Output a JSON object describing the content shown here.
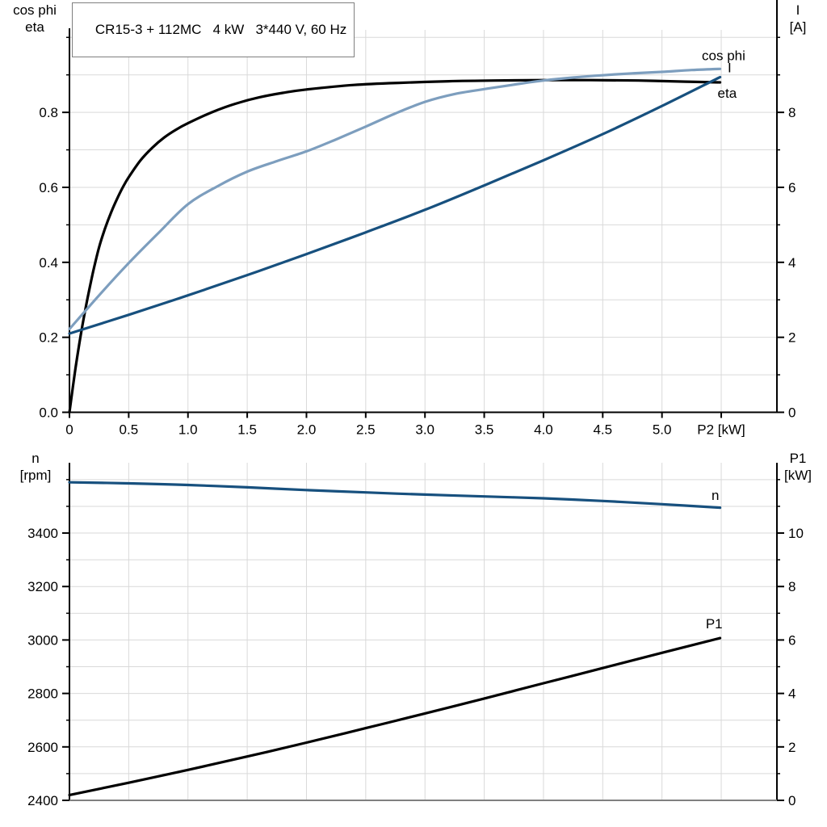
{
  "title": "CR15-3 + 112MC   4 kW   3*440 V, 60 Hz",
  "colors": {
    "black": "#000000",
    "dark_blue": "#17507E",
    "light_blue": "#7D9EBE",
    "grid": "#D9D9D9",
    "axis": "#000000",
    "frame_gray": "#808080",
    "background": "#FFFFFF"
  },
  "chart_data": [
    {
      "type": "line",
      "name": "motor-performance-curves",
      "title": "CR15-3 + 112MC   4 kW   3*440 V, 60 Hz",
      "x_axis": {
        "label": "P2 [kW]",
        "range": [
          0,
          5.97
        ],
        "grid_step": 0.5,
        "ticks": [
          {
            "v": 0,
            "t": "0"
          },
          {
            "v": 0.5,
            "t": "0.5"
          },
          {
            "v": 1,
            "t": "1.0"
          },
          {
            "v": 1.5,
            "t": "1.5"
          },
          {
            "v": 2,
            "t": "2.0"
          },
          {
            "v": 2.5,
            "t": "2.5"
          },
          {
            "v": 3,
            "t": "3.0"
          },
          {
            "v": 3.5,
            "t": "3.5"
          },
          {
            "v": 4,
            "t": "4.0"
          },
          {
            "v": 4.5,
            "t": "4.5"
          },
          {
            "v": 5,
            "t": "5.0"
          },
          {
            "v": 5.5,
            "t": "P2 [kW]"
          }
        ]
      },
      "y_left": {
        "label_lines": [
          "cos phi",
          "eta"
        ],
        "range": [
          0,
          1.02
        ],
        "minor_step": 0.1,
        "ticks": [
          {
            "v": 0,
            "t": "0.0"
          },
          {
            "v": 0.2,
            "t": "0.2"
          },
          {
            "v": 0.4,
            "t": "0.4"
          },
          {
            "v": 0.6,
            "t": "0.6"
          },
          {
            "v": 0.8,
            "t": "0.8"
          }
        ]
      },
      "y_right": {
        "label_lines": [
          "I",
          "[A]"
        ],
        "range": [
          0,
          10.2
        ],
        "minor_step": 1,
        "ticks": [
          {
            "v": 0,
            "t": "0"
          },
          {
            "v": 2,
            "t": "2"
          },
          {
            "v": 4,
            "t": "4"
          },
          {
            "v": 6,
            "t": "6"
          },
          {
            "v": 8,
            "t": "8"
          }
        ]
      },
      "series": [
        {
          "name": "eta",
          "axis": "left",
          "color_key": "black",
          "label": "eta",
          "label_at": {
            "x": 5.55,
            "y": 0.852
          },
          "x": [
            0,
            0.05,
            0.1,
            0.15,
            0.2,
            0.25,
            0.3,
            0.35,
            0.4,
            0.45,
            0.5,
            0.6,
            0.7,
            0.8,
            0.9,
            1.0,
            1.2,
            1.4,
            1.6,
            1.8,
            2.0,
            2.4,
            2.8,
            3.2,
            3.6,
            4.0,
            4.4,
            4.8,
            5.2,
            5.49
          ],
          "y": [
            0,
            0.115,
            0.215,
            0.3,
            0.375,
            0.44,
            0.49,
            0.532,
            0.568,
            0.6,
            0.627,
            0.672,
            0.706,
            0.733,
            0.754,
            0.771,
            0.8,
            0.823,
            0.84,
            0.852,
            0.861,
            0.873,
            0.879,
            0.883,
            0.885,
            0.886,
            0.886,
            0.885,
            0.882,
            0.88
          ]
        },
        {
          "name": "cos phi",
          "axis": "left",
          "color_key": "light_blue",
          "label": "cos phi",
          "label_at": {
            "x": 5.52,
            "y": 0.952
          },
          "x": [
            0,
            0.25,
            0.5,
            0.75,
            1.0,
            1.25,
            1.5,
            1.75,
            2.0,
            2.25,
            2.5,
            2.75,
            3.0,
            3.25,
            3.5,
            3.75,
            4.0,
            4.25,
            4.5,
            4.75,
            5.0,
            5.25,
            5.49
          ],
          "y": [
            0.222,
            0.312,
            0.398,
            0.478,
            0.555,
            0.603,
            0.642,
            0.67,
            0.696,
            0.728,
            0.762,
            0.797,
            0.828,
            0.849,
            0.862,
            0.874,
            0.885,
            0.893,
            0.899,
            0.904,
            0.908,
            0.913,
            0.916
          ]
        },
        {
          "name": "I",
          "axis": "right",
          "color_key": "dark_blue",
          "label": "I",
          "label_at": {
            "x": 5.57,
            "y": 9.2
          },
          "x": [
            0,
            0.5,
            1.0,
            1.5,
            2.0,
            2.5,
            3.0,
            3.5,
            4.0,
            4.5,
            5.0,
            5.49
          ],
          "y": [
            2.1,
            2.6,
            3.12,
            3.66,
            4.22,
            4.8,
            5.4,
            6.05,
            6.72,
            7.42,
            8.17,
            8.94
          ]
        }
      ]
    },
    {
      "type": "line",
      "name": "speed-and-input-power-curves",
      "x_axis": {
        "label": null,
        "range": [
          0,
          5.97
        ],
        "grid_step": 0.5,
        "ticks": []
      },
      "y_left": {
        "label_lines": [
          "n",
          "[rpm]"
        ],
        "range": [
          2400,
          3663
        ],
        "minor_step": 100,
        "ticks": [
          {
            "v": 2400,
            "t": "2400"
          },
          {
            "v": 2600,
            "t": "2600"
          },
          {
            "v": 2800,
            "t": "2800"
          },
          {
            "v": 3000,
            "t": "3000"
          },
          {
            "v": 3200,
            "t": "3200"
          },
          {
            "v": 3400,
            "t": "3400"
          }
        ]
      },
      "y_right": {
        "label_lines": [
          "P1",
          "[kW]"
        ],
        "range": [
          0,
          12.63
        ],
        "minor_step": 1,
        "ticks": [
          {
            "v": 0,
            "t": "0"
          },
          {
            "v": 2,
            "t": "2"
          },
          {
            "v": 4,
            "t": "4"
          },
          {
            "v": 6,
            "t": "6"
          },
          {
            "v": 8,
            "t": "8"
          },
          {
            "v": 10,
            "t": "10"
          }
        ]
      },
      "series": [
        {
          "name": "n",
          "axis": "left",
          "color_key": "dark_blue",
          "label": "n",
          "label_at": {
            "x": 5.45,
            "y": 3542
          },
          "x": [
            0,
            0.5,
            1,
            1.5,
            2,
            2.5,
            3,
            3.5,
            4,
            4.5,
            5,
            5.49
          ],
          "y": [
            3590,
            3586,
            3580,
            3571,
            3561,
            3552,
            3544,
            3537,
            3530,
            3520,
            3508,
            3495
          ]
        },
        {
          "name": "P1",
          "axis": "right",
          "color_key": "black",
          "label": "P1",
          "label_at": {
            "x": 5.44,
            "y": 6.62
          },
          "x": [
            0,
            0.5,
            1,
            1.5,
            2,
            2.5,
            3,
            3.5,
            4,
            4.5,
            5,
            5.49
          ],
          "y": [
            0.2,
            0.66,
            1.14,
            1.64,
            2.16,
            2.7,
            3.25,
            3.81,
            4.38,
            4.95,
            5.52,
            6.07
          ]
        }
      ]
    }
  ]
}
